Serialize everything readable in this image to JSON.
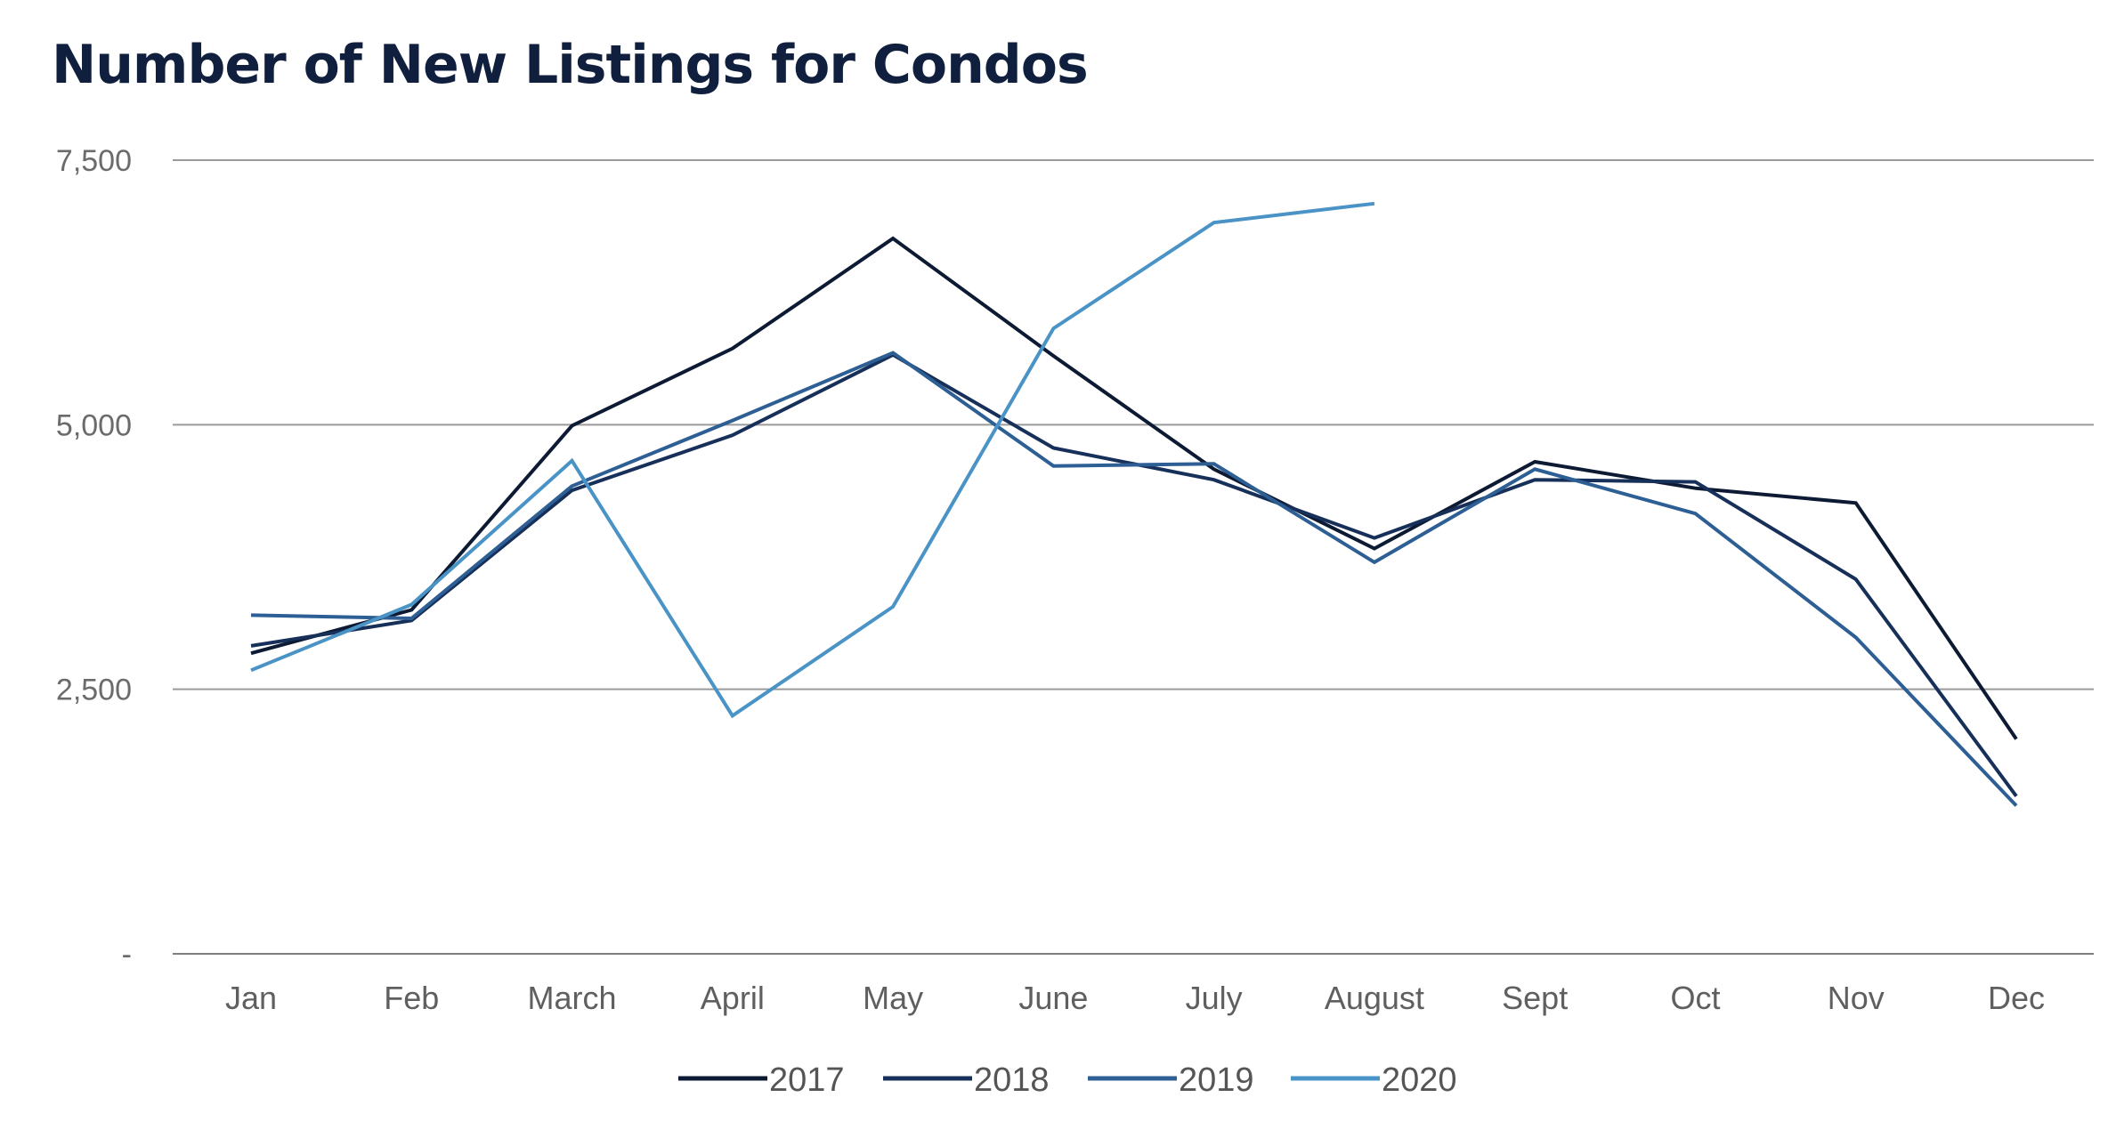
{
  "chart_data": {
    "type": "line",
    "title": "Number of New Listings for Condos",
    "xlabel": "",
    "ylabel": "",
    "categories": [
      "Jan",
      "Feb",
      "March",
      "April",
      "May",
      "June",
      "July",
      "August",
      "Sept",
      "Oct",
      "Nov",
      "Dec"
    ],
    "ylim": [
      0,
      7500
    ],
    "yticks": [
      {
        "value": 0,
        "label": "-"
      },
      {
        "value": 2500,
        "label": "2,500"
      },
      {
        "value": 5000,
        "label": "5,000"
      },
      {
        "value": 7500,
        "label": "7,500"
      }
    ],
    "grid": true,
    "legend_position": "bottom",
    "series": [
      {
        "name": "2017",
        "color": "#0d1a33",
        "values": [
          2840,
          3250,
          4990,
          5720,
          6760,
          5650,
          4580,
          3830,
          4650,
          4400,
          4260,
          2030
        ]
      },
      {
        "name": "2018",
        "color": "#17305a",
        "values": [
          2910,
          3150,
          4380,
          4900,
          5660,
          4780,
          4480,
          3930,
          4480,
          4460,
          3540,
          1490
        ]
      },
      {
        "name": "2019",
        "color": "#2d5f95",
        "values": [
          3200,
          3170,
          4420,
          5040,
          5680,
          4610,
          4630,
          3700,
          4580,
          4160,
          2990,
          1400
        ]
      },
      {
        "name": "2020",
        "color": "#4a93c6",
        "values": [
          2680,
          3300,
          4660,
          2250,
          3280,
          5910,
          6910,
          7090,
          null,
          null,
          null,
          null
        ]
      }
    ]
  }
}
